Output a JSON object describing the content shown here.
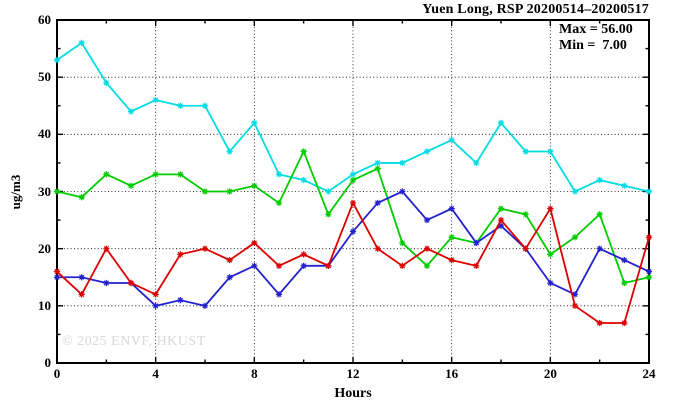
{
  "title": "Yuen Long, RSP 20200514–20200517",
  "annotation": {
    "max_label": "Max = 56.00",
    "min_label": "Min =  7.00"
  },
  "watermark": "© 2025 ENVF, HKUST",
  "chart_data": {
    "type": "line",
    "title": "Yuen Long, RSP 20200514–20200517",
    "xlabel": "Hours",
    "ylabel": "ug/m3",
    "xlim": [
      0,
      24
    ],
    "ylim": [
      0,
      60
    ],
    "xticks": [
      0,
      4,
      8,
      12,
      16,
      20,
      24
    ],
    "yticks": [
      0,
      10,
      20,
      30,
      40,
      50,
      60
    ],
    "minor_xticks": [
      2,
      6,
      10,
      14,
      18,
      22
    ],
    "minor_yticks": [
      5,
      15,
      25,
      35,
      45,
      55
    ],
    "grid": true,
    "legend_position": "none",
    "marker": "asterisk",
    "stats": {
      "max": 56.0,
      "min": 7.0
    },
    "x": [
      0,
      1,
      2,
      3,
      4,
      5,
      6,
      7,
      8,
      9,
      10,
      11,
      12,
      13,
      14,
      15,
      16,
      17,
      18,
      19,
      20,
      21,
      22,
      23,
      24
    ],
    "series": [
      {
        "name": "cyan",
        "color": "#00dde4",
        "values": [
          53,
          56,
          49,
          44,
          46,
          45,
          45,
          37,
          42,
          33,
          32,
          30,
          33,
          35,
          35,
          37,
          39,
          35,
          42,
          37,
          37,
          30,
          32,
          31,
          30
        ]
      },
      {
        "name": "green",
        "color": "#00cc00",
        "values": [
          30,
          29,
          33,
          31,
          33,
          33,
          30,
          30,
          31,
          28,
          37,
          26,
          32,
          34,
          21,
          17,
          22,
          21,
          27,
          26,
          19,
          22,
          26,
          14,
          15
        ]
      },
      {
        "name": "blue",
        "color": "#2222cc",
        "values": [
          15,
          15,
          14,
          14,
          10,
          11,
          10,
          15,
          17,
          12,
          17,
          17,
          23,
          28,
          30,
          25,
          27,
          21,
          24,
          20,
          14,
          12,
          20,
          18,
          16
        ]
      },
      {
        "name": "red",
        "color": "#dd0000",
        "values": [
          16,
          12,
          20,
          14,
          12,
          19,
          20,
          18,
          21,
          17,
          19,
          17,
          28,
          20,
          17,
          20,
          18,
          17,
          25,
          20,
          27,
          10,
          7,
          7,
          22
        ]
      }
    ]
  }
}
